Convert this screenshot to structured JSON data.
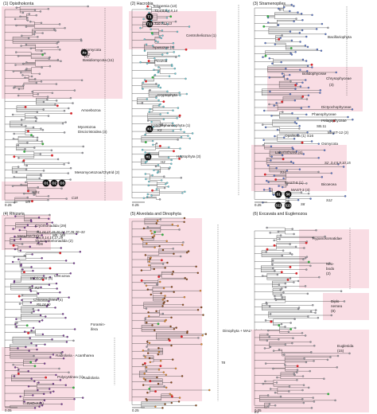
{
  "panels": [
    {
      "key": "p1",
      "title": "(1) Opisthokonta",
      "scale": "0.25",
      "dot": "#9a9aa2",
      "highlight": "#f9dde4",
      "labels": [
        {
          "text": "Ascomycota",
          "sub": "(2)",
          "style": "lbl"
        },
        {
          "text": "As2",
          "style": "lbl-i"
        },
        {
          "text": "Basidiomycota (11)",
          "style": "lbl"
        },
        {
          "text": "Amoebozoa",
          "style": "lbl"
        },
        {
          "text": "Mycetozoa",
          "style": "lbl"
        },
        {
          "text": "Discicristoidea (3)",
          "style": "lbl"
        },
        {
          "text": "Mesomycetozoa/Chytrid (2)",
          "style": "lbl"
        },
        {
          "text": "C18",
          "style": "lbl-i"
        },
        {
          "text": "Ch1",
          "style": "lbl-i"
        },
        {
          "text": "M9",
          "style": "lbl-i"
        }
      ],
      "badges": [
        "As",
        "O1",
        "O2",
        "O3"
      ]
    },
    {
      "key": "p2",
      "title": "(2) Hacrobia",
      "scale": "0.25",
      "dot": "#6fc9d4",
      "highlight": "#f9dde4",
      "labels": [
        {
          "text": "Telonemia (13)",
          "style": "lbl"
        },
        {
          "text": "T2,4,5,6,7,8,14",
          "style": "lbl-i"
        },
        {
          "text": "T10 T12,13",
          "style": "lbl-i"
        },
        {
          "text": "Centroheliozoa (1)",
          "style": "lbl"
        },
        {
          "text": "Apusozoa (1)",
          "style": "lbl"
        },
        {
          "text": "Picozoa",
          "style": "lbl"
        },
        {
          "text": "Cryptophyta",
          "style": "lbl"
        },
        {
          "text": "Katablepharidophyta (1)",
          "style": "lbl"
        },
        {
          "text": "K3",
          "style": "lbl-i"
        },
        {
          "text": "Haptophyta (3)",
          "style": "lbl"
        },
        {
          "text": "H3",
          "style": "lbl-i"
        }
      ],
      "badges": [
        "T1",
        "T11",
        "K1",
        "H1"
      ]
    },
    {
      "key": "p3",
      "title": "(3) Stramenopiles",
      "scale": "0.25",
      "dot": "#5a76c8",
      "highlight": "#f9dde4",
      "labels": [
        {
          "text": "Bacillariophyta",
          "style": "lbl"
        },
        {
          "text": "Bolidophyceae",
          "style": "lbl"
        },
        {
          "text": "Chrysophyceae",
          "sub": "(3)",
          "style": "lbl"
        },
        {
          "text": "Dictyochophyceae",
          "style": "lbl"
        },
        {
          "text": "Phaeophyceae",
          "style": "lbl"
        },
        {
          "text": "Pelagophyceae",
          "style": "lbl"
        },
        {
          "text": "SB.11",
          "style": "lbl"
        },
        {
          "text": "Opalinata (1) S16",
          "style": "lbl"
        },
        {
          "text": "MAST-12 (2)",
          "style": "lbl"
        },
        {
          "text": "Oomycota",
          "style": "lbl"
        },
        {
          "text": "Labyrinthulea (6)",
          "style": "lbl"
        },
        {
          "text": "S2 ,3,4,5,9,10,15",
          "style": "lbl-i"
        },
        {
          "text": "S14",
          "style": "lbl-i"
        },
        {
          "text": "MAST-8 (1)",
          "style": "lbl"
        },
        {
          "text": "Bicoecea",
          "style": "lbl"
        },
        {
          "text": "MAST-3 (4)",
          "style": "lbl"
        },
        {
          "text": "S12",
          "style": "lbl-i"
        },
        {
          "text": "S8",
          "style": "lbl-i"
        }
      ],
      "badges": [
        "S1",
        "S6",
        "S11",
        "S13"
      ]
    },
    {
      "key": "p4",
      "title": "(4) Rhizaria",
      "scale": "0.05",
      "dot": "#7a3d96",
      "highlight": "#f9dde4",
      "labels": [
        {
          "text": "Cryomonadida (29)",
          "style": "lbl"
        },
        {
          "text": "R1,16,17,19,20,24,27,28,30~33",
          "style": "lbl-i"
        },
        {
          "text": "R6,8,14,15,17,29",
          "style": "lbl-i"
        },
        {
          "text": "Metazoa (11)",
          "style": "lbl"
        },
        {
          "text": "M8 - M9",
          "style": "lbl-i"
        },
        {
          "text": "Thaumatomonadida (2)",
          "style": "lbl"
        },
        {
          "text": "R26",
          "style": "lbl-i"
        },
        {
          "text": "Cercozoa",
          "style": "lbl"
        },
        {
          "text": "Imbricatea (4)",
          "style": "lbl"
        },
        {
          "text": "R1",
          "style": "lbl-i"
        },
        {
          "text": "R2",
          "style": "lbl-i"
        },
        {
          "text": "Chlorarachnea (4)",
          "style": "lbl"
        },
        {
          "text": "R5,18,20",
          "style": "lbl-i"
        },
        {
          "text": "Foramin-",
          "style": "lbl"
        },
        {
          "text": "ifera",
          "style": "lbl"
        },
        {
          "text": "Radiolaria - Acantharea",
          "style": "lbl"
        },
        {
          "text": "Polycystinea (1)",
          "style": "lbl"
        },
        {
          "text": "Radiolaria",
          "style": "lbl"
        },
        {
          "text": "RAD-A (1)",
          "style": "lbl"
        }
      ],
      "badges": []
    },
    {
      "key": "p5",
      "title": "(5) Alveolata and Dinophyta",
      "scale": "0.25",
      "dot": "#e08a2a",
      "highlight": "#f9dde4",
      "labels": [
        {
          "text": "Dinophyta + MALVs (51)",
          "style": "lbl"
        },
        {
          "text": "T8",
          "style": "lbl-i"
        }
      ],
      "badges": []
    },
    {
      "key": "p6",
      "title": "(6) Excavata and Euglenozoa",
      "scale": "0.05",
      "dot": "#9a9aa2",
      "highlight": "#f9dde4",
      "labels": [
        {
          "text": "Trypanosomatidae",
          "style": "lbl"
        },
        {
          "text": "Neo-",
          "style": "lbl"
        },
        {
          "text": "bodo",
          "style": "lbl"
        },
        {
          "text": "(2)",
          "style": "lbl"
        },
        {
          "text": "Diplo",
          "style": "lbl"
        },
        {
          "text": "nemea",
          "style": "lbl"
        },
        {
          "text": "(8)",
          "style": "lbl"
        },
        {
          "text": "Euglenida",
          "style": "lbl"
        },
        {
          "text": "(15)",
          "style": "lbl"
        },
        {
          "text": "E1",
          "style": "lbl-i"
        }
      ],
      "badges": []
    }
  ],
  "colors": {
    "tree": "#2b2b2b",
    "marker_red": "#d8262b",
    "marker_green": "#3aaa46",
    "badge": "#111111",
    "divider": "#333333"
  }
}
